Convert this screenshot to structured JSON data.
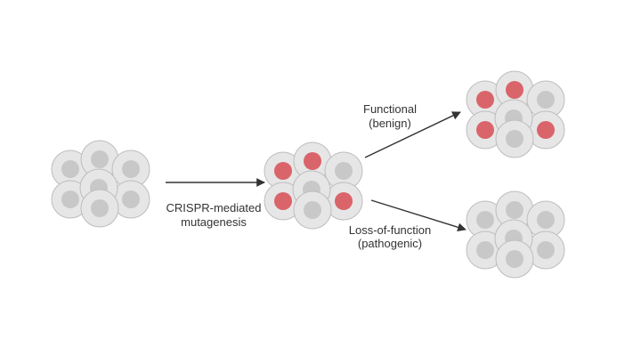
{
  "labels": {
    "step1_line1": "CRISPR-mediated",
    "step1_line2": "mutagenesis",
    "outcome_functional_line1": "Functional",
    "outcome_functional_line2": "(benign)",
    "outcome_lof_line1": "Loss-of-function",
    "outcome_lof_line2": "(pathogenic)"
  },
  "colors": {
    "cell_fill": "#e6e6e6",
    "cell_stroke": "#bdbdbd",
    "nucleus_normal": "#c8c8c8",
    "nucleus_mutant": "#d9646a",
    "arrow": "#333333"
  },
  "clusters": {
    "initial": {
      "mutant_nuclei": []
    },
    "mutagenized": {
      "mutant_nuclei": [
        0,
        1,
        3,
        4
      ]
    },
    "functional": {
      "mutant_nuclei": [
        0,
        1,
        3,
        4
      ]
    },
    "loss_of_function": {
      "mutant_nuclei": []
    }
  }
}
